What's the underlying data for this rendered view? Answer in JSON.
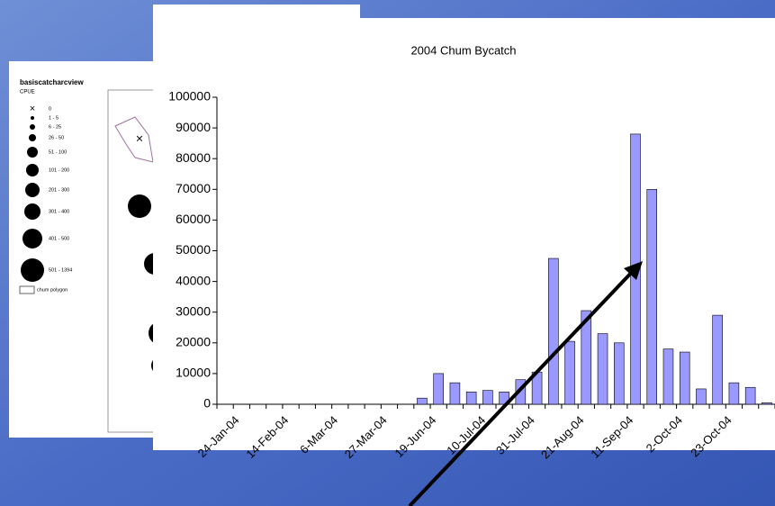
{
  "chart_data": {
    "type": "bar",
    "title": "2004 Chum Bycatch",
    "categories": [
      "24-Jan-04",
      null,
      null,
      "14-Feb-04",
      null,
      null,
      "6-Mar-04",
      null,
      null,
      "27-Mar-04",
      null,
      null,
      "19-Jun-04",
      null,
      null,
      "10-Jul-04",
      null,
      null,
      "31-Jul-04",
      null,
      null,
      "21-Aug-04",
      null,
      null,
      "11-Sep-04",
      null,
      null,
      "2-Oct-04",
      null,
      null,
      "23-Oct-04",
      null,
      null,
      null
    ],
    "values": [
      0,
      0,
      0,
      0,
      0,
      0,
      0,
      0,
      0,
      0,
      0,
      0,
      2000,
      10000,
      7000,
      4000,
      4500,
      4000,
      8000,
      10500,
      47500,
      20500,
      30500,
      23000,
      20000,
      88000,
      70000,
      18000,
      17000,
      5000,
      29000,
      7000,
      5500,
      500
    ],
    "color": "#9999ff",
    "ylim": [
      0,
      100000
    ],
    "yticks": [
      0,
      10000,
      20000,
      30000,
      40000,
      50000,
      60000,
      70000,
      80000,
      90000,
      100000
    ]
  },
  "map_legend": {
    "title": "basiscatcharcview",
    "subtitle": "CPUE",
    "items": [
      "0",
      "1 - 5",
      "6 - 25",
      "26 - 50",
      "51 - 100",
      "101 - 200",
      "201 - 300",
      "301 - 400",
      "401 - 500",
      "501 - 1394",
      "chum polygon"
    ]
  }
}
